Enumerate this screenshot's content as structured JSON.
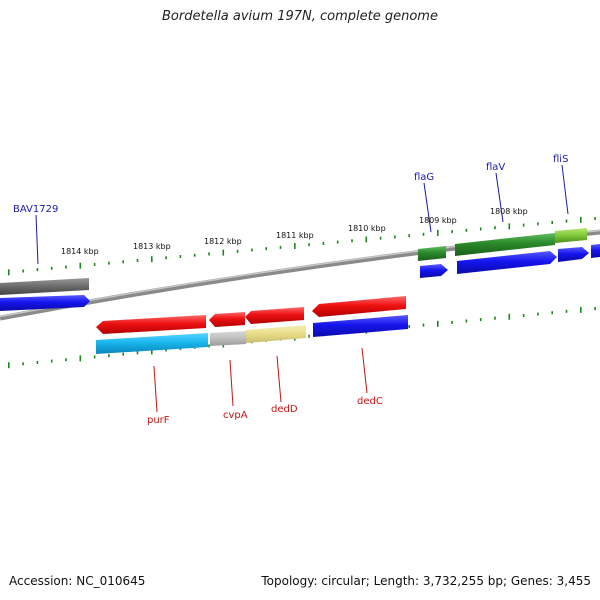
{
  "title": "Bordetella avium 197N, complete genome",
  "footer": {
    "accession": "Accession: NC_010645",
    "summary": "Topology: circular; Length: 3,732,255 bp; Genes: 3,455"
  },
  "scale_labels": [
    "1814 kbp",
    "1813 kbp",
    "1812 kbp",
    "1811 kbp",
    "1810 kbp",
    "1809 kbp",
    "1808 kbp"
  ],
  "gene_labels": {
    "top": [
      "BAV1729",
      "flaG",
      "flaV",
      "fliS"
    ],
    "bottom": [
      "purF",
      "cvpA",
      "dedD",
      "dedC"
    ]
  },
  "colors": {
    "label_top": "#1a1aaa",
    "label_bottom": "#cc1111",
    "tick": "#1a8a1a",
    "backbone": "#808080",
    "red": "#ee1111",
    "blue": "#1a1aee",
    "green": "#2a8a2a",
    "cyan": "#19b6ee",
    "gray": "#bdbdbd",
    "khaki": "#e8dc8a",
    "dark_gray": "#6a6a6a"
  }
}
